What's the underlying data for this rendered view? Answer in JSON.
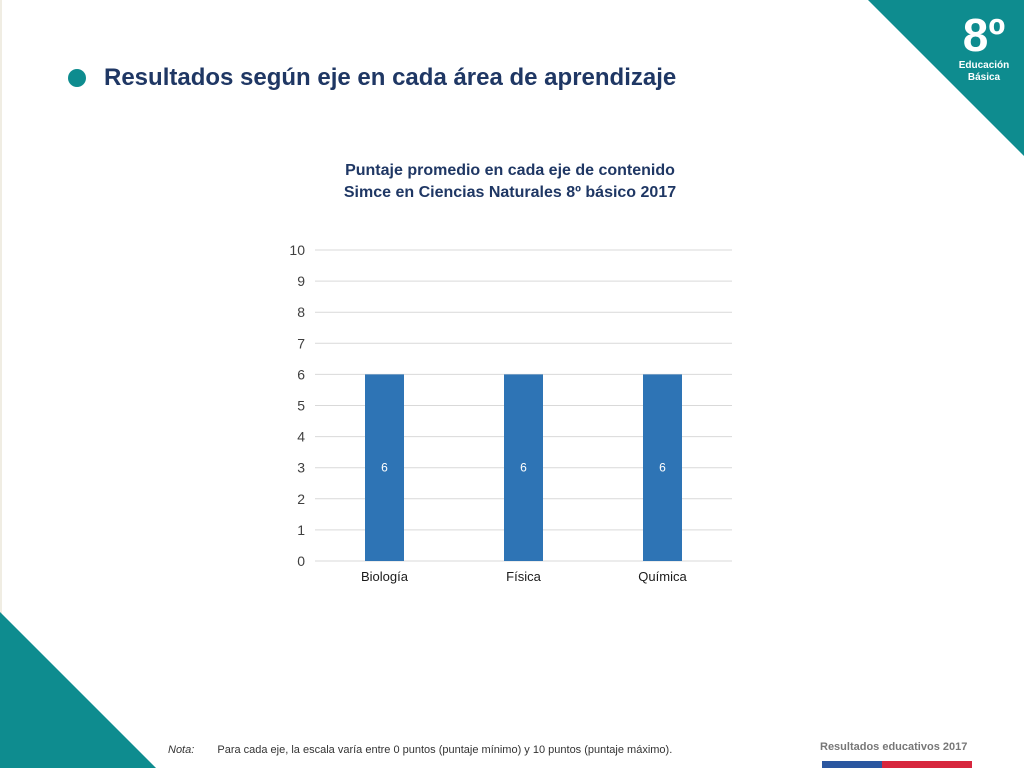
{
  "badge": {
    "grade": "8º",
    "line1": "Educación",
    "line2": "Básica"
  },
  "heading": {
    "title": "Resultados según eje en cada área de aprendizaje"
  },
  "chart_data": {
    "type": "bar",
    "title": "Puntaje promedio en cada eje de contenido",
    "subtitle": "Simce en Ciencias Naturales 8º básico 2017",
    "categories": [
      "Biología",
      "Física",
      "Química"
    ],
    "values": [
      6,
      6,
      6
    ],
    "data_labels": [
      "6",
      "6",
      "6"
    ],
    "ylim": [
      0,
      10
    ],
    "yticks": [
      "0",
      "1",
      "2",
      "3",
      "4",
      "5",
      "6",
      "7",
      "8",
      "9",
      "10"
    ],
    "xlabel": "",
    "ylabel": "",
    "grid": true,
    "legend": "none",
    "bar_color": "#2e74b5"
  },
  "note": {
    "label": "Nota:",
    "text": "Para cada eje, la escala varía entre 0 puntos (puntaje mínimo) y 10 puntos (puntaje máximo)."
  },
  "footer": {
    "brand": "Resultados educativos 2017"
  },
  "colors": {
    "teal": "#0e8c8f",
    "navy": "#1f3764",
    "flag_blue": "#2b57a0",
    "flag_red": "#d7263d"
  }
}
